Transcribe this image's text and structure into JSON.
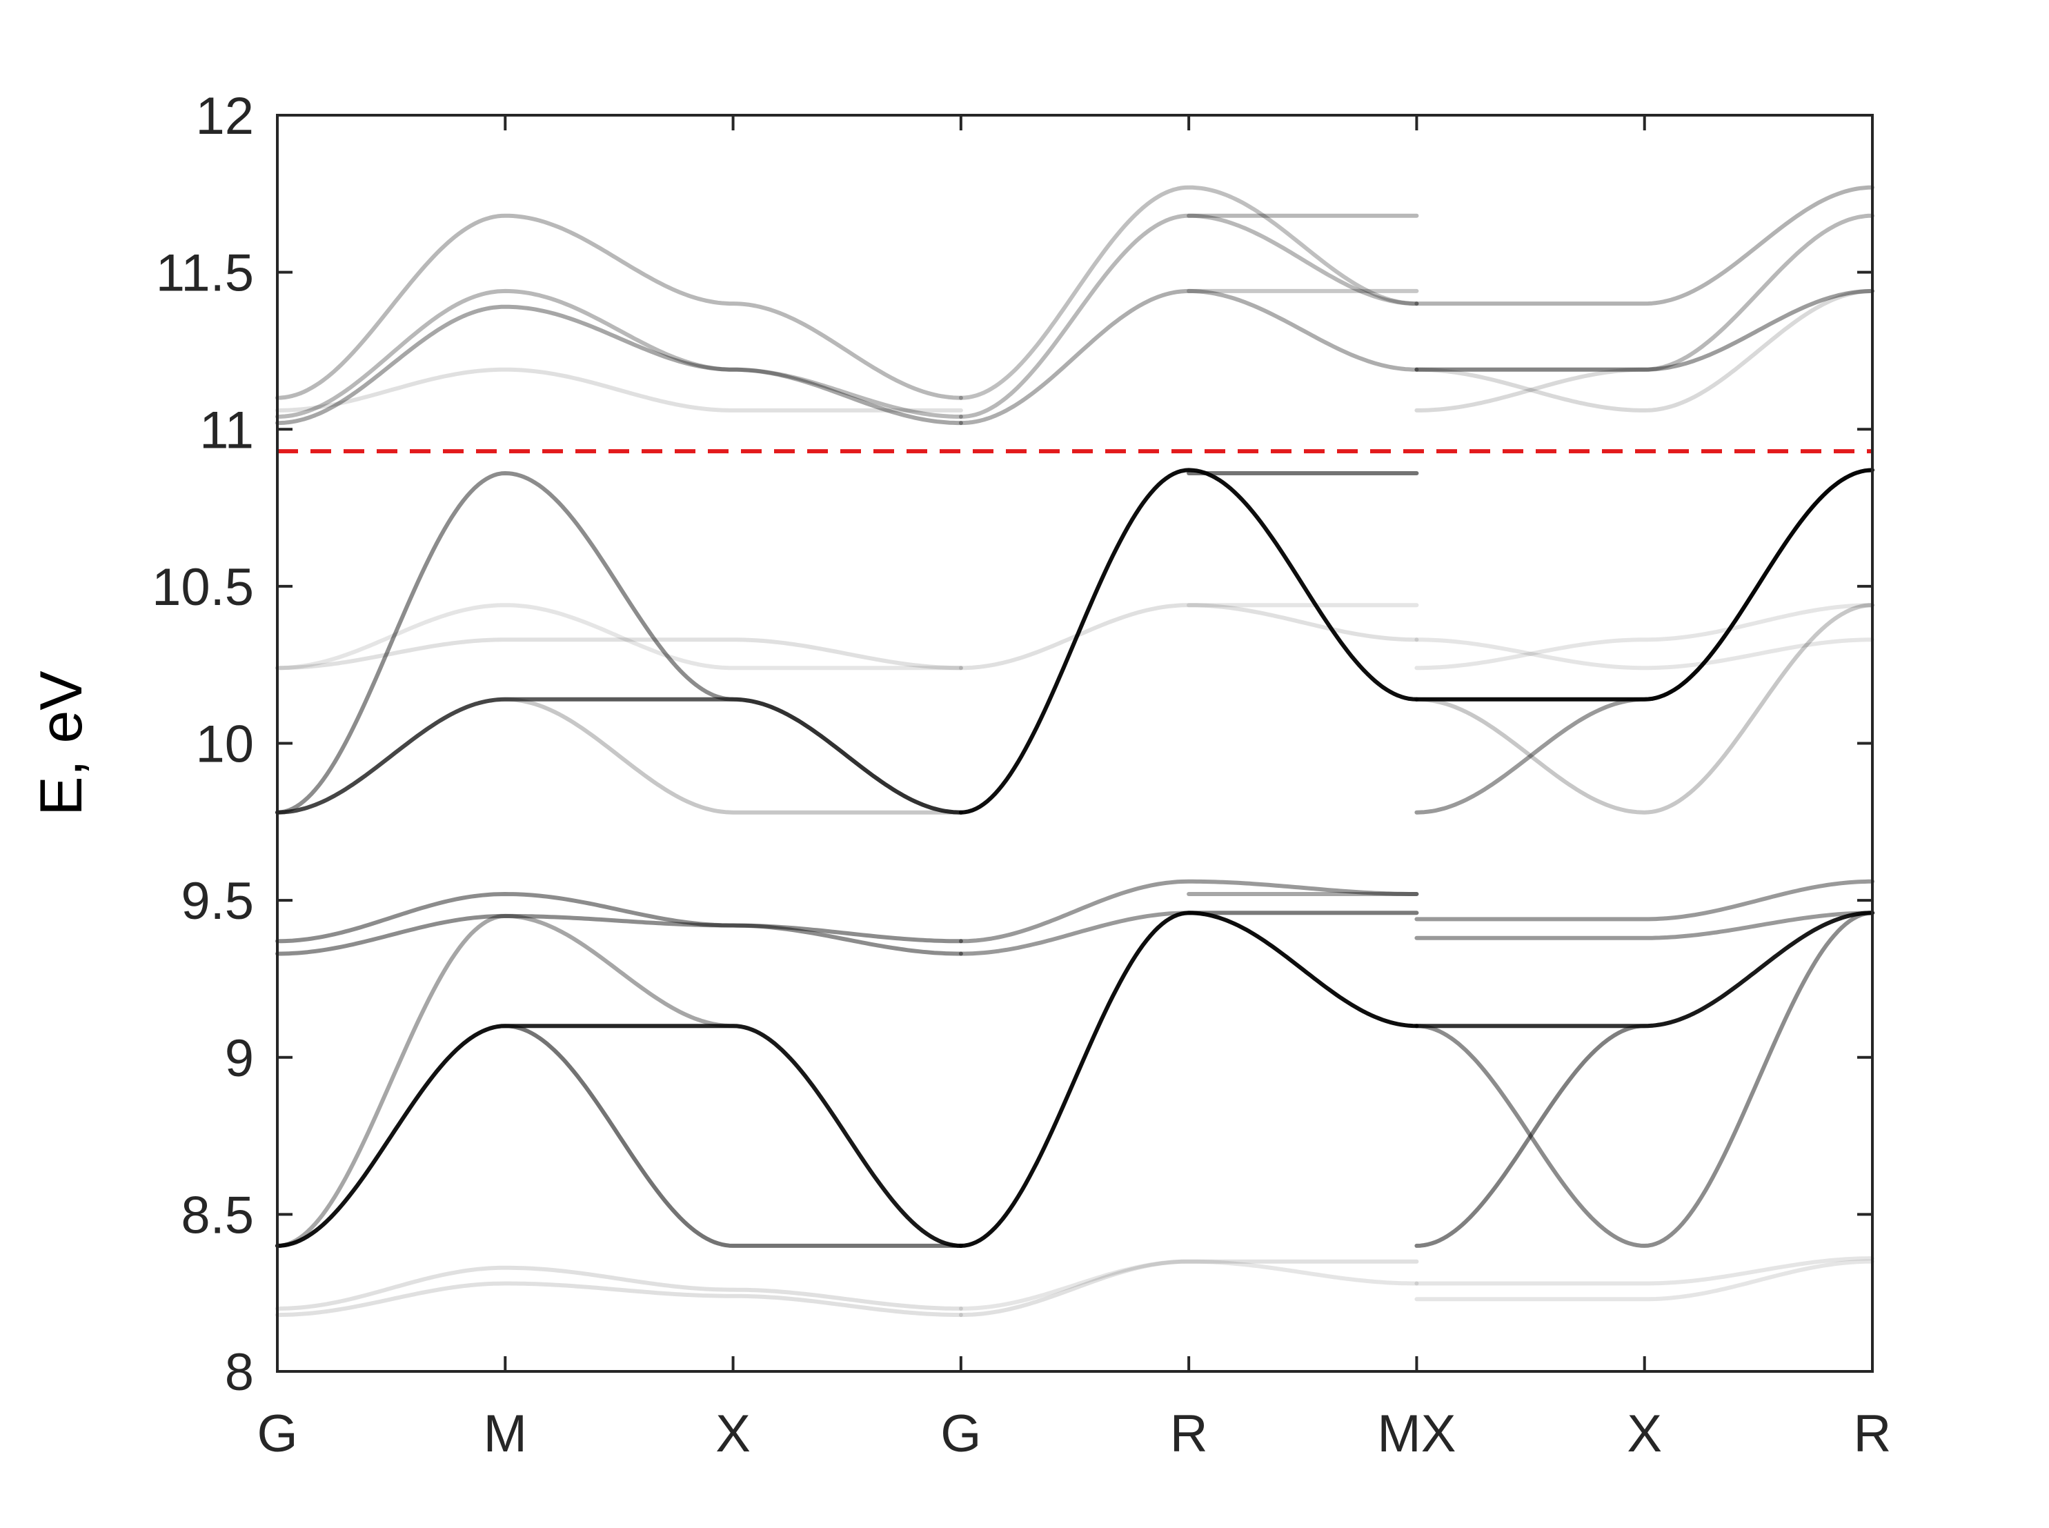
{
  "chart_data": {
    "type": "line",
    "title": "",
    "xlabel": "",
    "ylabel": "E, eV",
    "ylim": [
      8,
      12
    ],
    "xlim": [
      0,
      7
    ],
    "yticks": [
      8,
      8.5,
      9,
      9.5,
      10,
      10.5,
      11,
      11.5,
      12
    ],
    "ytick_labels": [
      "8",
      "8.5",
      "9",
      "9.5",
      "10",
      "10.5",
      "11",
      "11.5",
      "12"
    ],
    "xticks": [
      0,
      1,
      2,
      3,
      4,
      5,
      6,
      7
    ],
    "xtick_labels": [
      "G",
      "M",
      "X",
      "G",
      "R",
      "MX",
      "X",
      "R"
    ],
    "grid": false,
    "fermi_level": 10.93,
    "fermi_color": "#e31a1c",
    "band_color": "#000000",
    "band_segments": [
      {
        "name": "",
        "x": [
          0,
          1,
          2,
          3
        ],
        "values": [
          8.4,
          9.1,
          9.1,
          8.4
        ],
        "intensity": 0.85
      },
      {
        "name": "",
        "x": [
          0,
          1,
          2,
          3
        ],
        "values": [
          8.4,
          9.45,
          9.1,
          8.4
        ],
        "intensity": 0.35
      },
      {
        "name": "",
        "x": [
          0,
          1,
          2,
          3
        ],
        "values": [
          8.4,
          9.1,
          8.4,
          8.4
        ],
        "intensity": 0.55
      },
      {
        "name": "",
        "x": [
          0,
          1,
          2,
          3
        ],
        "values": [
          9.33,
          9.45,
          9.42,
          9.33
        ],
        "intensity": 0.45
      },
      {
        "name": "",
        "x": [
          0,
          1,
          2,
          3
        ],
        "values": [
          9.37,
          9.52,
          9.42,
          9.37
        ],
        "intensity": 0.45
      },
      {
        "name": "",
        "x": [
          0,
          1,
          2,
          3
        ],
        "values": [
          8.18,
          8.28,
          8.24,
          8.18
        ],
        "intensity": 0.12
      },
      {
        "name": "",
        "x": [
          0,
          1,
          2,
          3
        ],
        "values": [
          8.2,
          8.33,
          8.26,
          8.2
        ],
        "intensity": 0.12
      },
      {
        "name": "",
        "x": [
          0,
          1,
          2,
          3
        ],
        "values": [
          9.78,
          10.14,
          10.14,
          9.78
        ],
        "intensity": 0.65
      },
      {
        "name": "",
        "x": [
          0,
          1,
          2,
          3
        ],
        "values": [
          9.78,
          10.86,
          10.14,
          9.78
        ],
        "intensity": 0.45
      },
      {
        "name": "",
        "x": [
          0,
          1,
          2,
          3
        ],
        "values": [
          9.78,
          10.14,
          9.78,
          9.78
        ],
        "intensity": 0.22
      },
      {
        "name": "",
        "x": [
          0,
          1,
          2,
          3
        ],
        "values": [
          10.24,
          10.33,
          10.33,
          10.24
        ],
        "intensity": 0.12
      },
      {
        "name": "",
        "x": [
          0,
          1,
          2,
          3
        ],
        "values": [
          10.24,
          10.44,
          10.24,
          10.24
        ],
        "intensity": 0.1
      },
      {
        "name": "",
        "x": [
          0,
          1,
          2,
          3
        ],
        "values": [
          11.02,
          11.39,
          11.19,
          11.02
        ],
        "intensity": 0.35
      },
      {
        "name": "",
        "x": [
          0,
          1,
          2,
          3
        ],
        "values": [
          11.04,
          11.44,
          11.19,
          11.04
        ],
        "intensity": 0.28
      },
      {
        "name": "",
        "x": [
          0,
          1,
          2,
          3
        ],
        "values": [
          11.1,
          11.68,
          11.4,
          11.1
        ],
        "intensity": 0.28
      },
      {
        "name": "",
        "x": [
          0,
          1,
          2,
          3
        ],
        "values": [
          11.06,
          11.19,
          11.06,
          11.06
        ],
        "intensity": 0.12
      },
      {
        "name": "",
        "x": [
          3,
          4,
          5
        ],
        "values": [
          8.4,
          9.46,
          9.1
        ],
        "intensity": 0.95
      },
      {
        "name": "",
        "x": [
          3,
          4,
          5
        ],
        "values": [
          9.33,
          9.46,
          9.46
        ],
        "intensity": 0.4
      },
      {
        "name": "",
        "x": [
          3,
          4,
          5
        ],
        "values": [
          9.37,
          9.56,
          9.52
        ],
        "intensity": 0.4
      },
      {
        "name": "",
        "x": [
          3,
          4,
          5
        ],
        "values": [
          8.18,
          8.35,
          8.35
        ],
        "intensity": 0.12
      },
      {
        "name": "",
        "x": [
          3,
          4,
          5
        ],
        "values": [
          8.2,
          8.35,
          8.28
        ],
        "intensity": 0.1
      },
      {
        "name": "",
        "x": [
          3,
          4,
          5
        ],
        "values": [
          9.78,
          10.87,
          10.14
        ],
        "intensity": 0.95
      },
      {
        "name": "",
        "x": [
          3,
          4,
          5
        ],
        "values": [
          10.24,
          10.44,
          10.33
        ],
        "intensity": 0.12
      },
      {
        "name": "",
        "x": [
          3,
          4,
          5
        ],
        "values": [
          11.02,
          11.44,
          11.19
        ],
        "intensity": 0.32
      },
      {
        "name": "",
        "x": [
          3,
          4,
          5
        ],
        "values": [
          11.04,
          11.68,
          11.4
        ],
        "intensity": 0.28
      },
      {
        "name": "",
        "x": [
          3,
          4,
          5
        ],
        "values": [
          11.1,
          11.77,
          11.4
        ],
        "intensity": 0.25
      },
      {
        "name": "",
        "x": [
          4,
          5
        ],
        "values": [
          10.86,
          10.86
        ],
        "intensity": 0.55
      },
      {
        "name": "",
        "x": [
          4,
          5
        ],
        "values": [
          11.68,
          11.68
        ],
        "intensity": 0.28
      },
      {
        "name": "",
        "x": [
          4,
          5
        ],
        "values": [
          11.44,
          11.44
        ],
        "intensity": 0.22
      },
      {
        "name": "",
        "x": [
          4,
          5
        ],
        "values": [
          10.44,
          10.44
        ],
        "intensity": 0.1
      },
      {
        "name": "",
        "x": [
          4,
          5
        ],
        "values": [
          9.52,
          9.52
        ],
        "intensity": 0.35
      },
      {
        "name": "",
        "x": [
          4,
          5
        ],
        "values": [
          9.46,
          9.46
        ],
        "intensity": 0.2
      },
      {
        "name": "",
        "x": [
          5,
          6,
          7
        ],
        "values": [
          8.4,
          9.1,
          9.46
        ],
        "intensity": 0.5
      },
      {
        "name": "",
        "x": [
          5,
          6,
          7
        ],
        "values": [
          9.1,
          8.4,
          9.46
        ],
        "intensity": 0.45
      },
      {
        "name": "",
        "x": [
          5,
          6,
          7
        ],
        "values": [
          9.1,
          9.1,
          9.46
        ],
        "intensity": 0.8
      },
      {
        "name": "",
        "x": [
          5,
          6,
          7
        ],
        "values": [
          9.38,
          9.38,
          9.46
        ],
        "intensity": 0.4
      },
      {
        "name": "",
        "x": [
          5,
          6,
          7
        ],
        "values": [
          9.44,
          9.44,
          9.56
        ],
        "intensity": 0.4
      },
      {
        "name": "",
        "x": [
          5,
          6,
          7
        ],
        "values": [
          8.23,
          8.23,
          8.35
        ],
        "intensity": 0.1
      },
      {
        "name": "",
        "x": [
          5,
          6,
          7
        ],
        "values": [
          8.28,
          8.28,
          8.36
        ],
        "intensity": 0.1
      },
      {
        "name": "",
        "x": [
          5,
          6,
          7
        ],
        "values": [
          10.14,
          10.14,
          10.87
        ],
        "intensity": 0.95
      },
      {
        "name": "",
        "x": [
          5,
          6,
          7
        ],
        "values": [
          9.78,
          10.14,
          10.87
        ],
        "intensity": 0.4
      },
      {
        "name": "",
        "x": [
          5,
          6,
          7
        ],
        "values": [
          10.14,
          9.78,
          10.44
        ],
        "intensity": 0.22
      },
      {
        "name": "",
        "x": [
          5,
          6,
          7
        ],
        "values": [
          10.24,
          10.33,
          10.44
        ],
        "intensity": 0.1
      },
      {
        "name": "",
        "x": [
          5,
          6,
          7
        ],
        "values": [
          10.33,
          10.24,
          10.33
        ],
        "intensity": 0.1
      },
      {
        "name": "",
        "x": [
          5,
          6,
          7
        ],
        "values": [
          11.4,
          11.4,
          11.77
        ],
        "intensity": 0.3
      },
      {
        "name": "",
        "x": [
          5,
          6,
          7
        ],
        "values": [
          11.19,
          11.19,
          11.68
        ],
        "intensity": 0.28
      },
      {
        "name": "",
        "x": [
          5,
          6,
          7
        ],
        "values": [
          11.19,
          11.19,
          11.44
        ],
        "intensity": 0.28
      },
      {
        "name": "",
        "x": [
          5,
          6,
          7
        ],
        "values": [
          11.19,
          11.06,
          11.44
        ],
        "intensity": 0.15
      },
      {
        "name": "",
        "x": [
          5,
          6,
          7
        ],
        "values": [
          11.06,
          11.19,
          11.44
        ],
        "intensity": 0.15
      }
    ]
  }
}
